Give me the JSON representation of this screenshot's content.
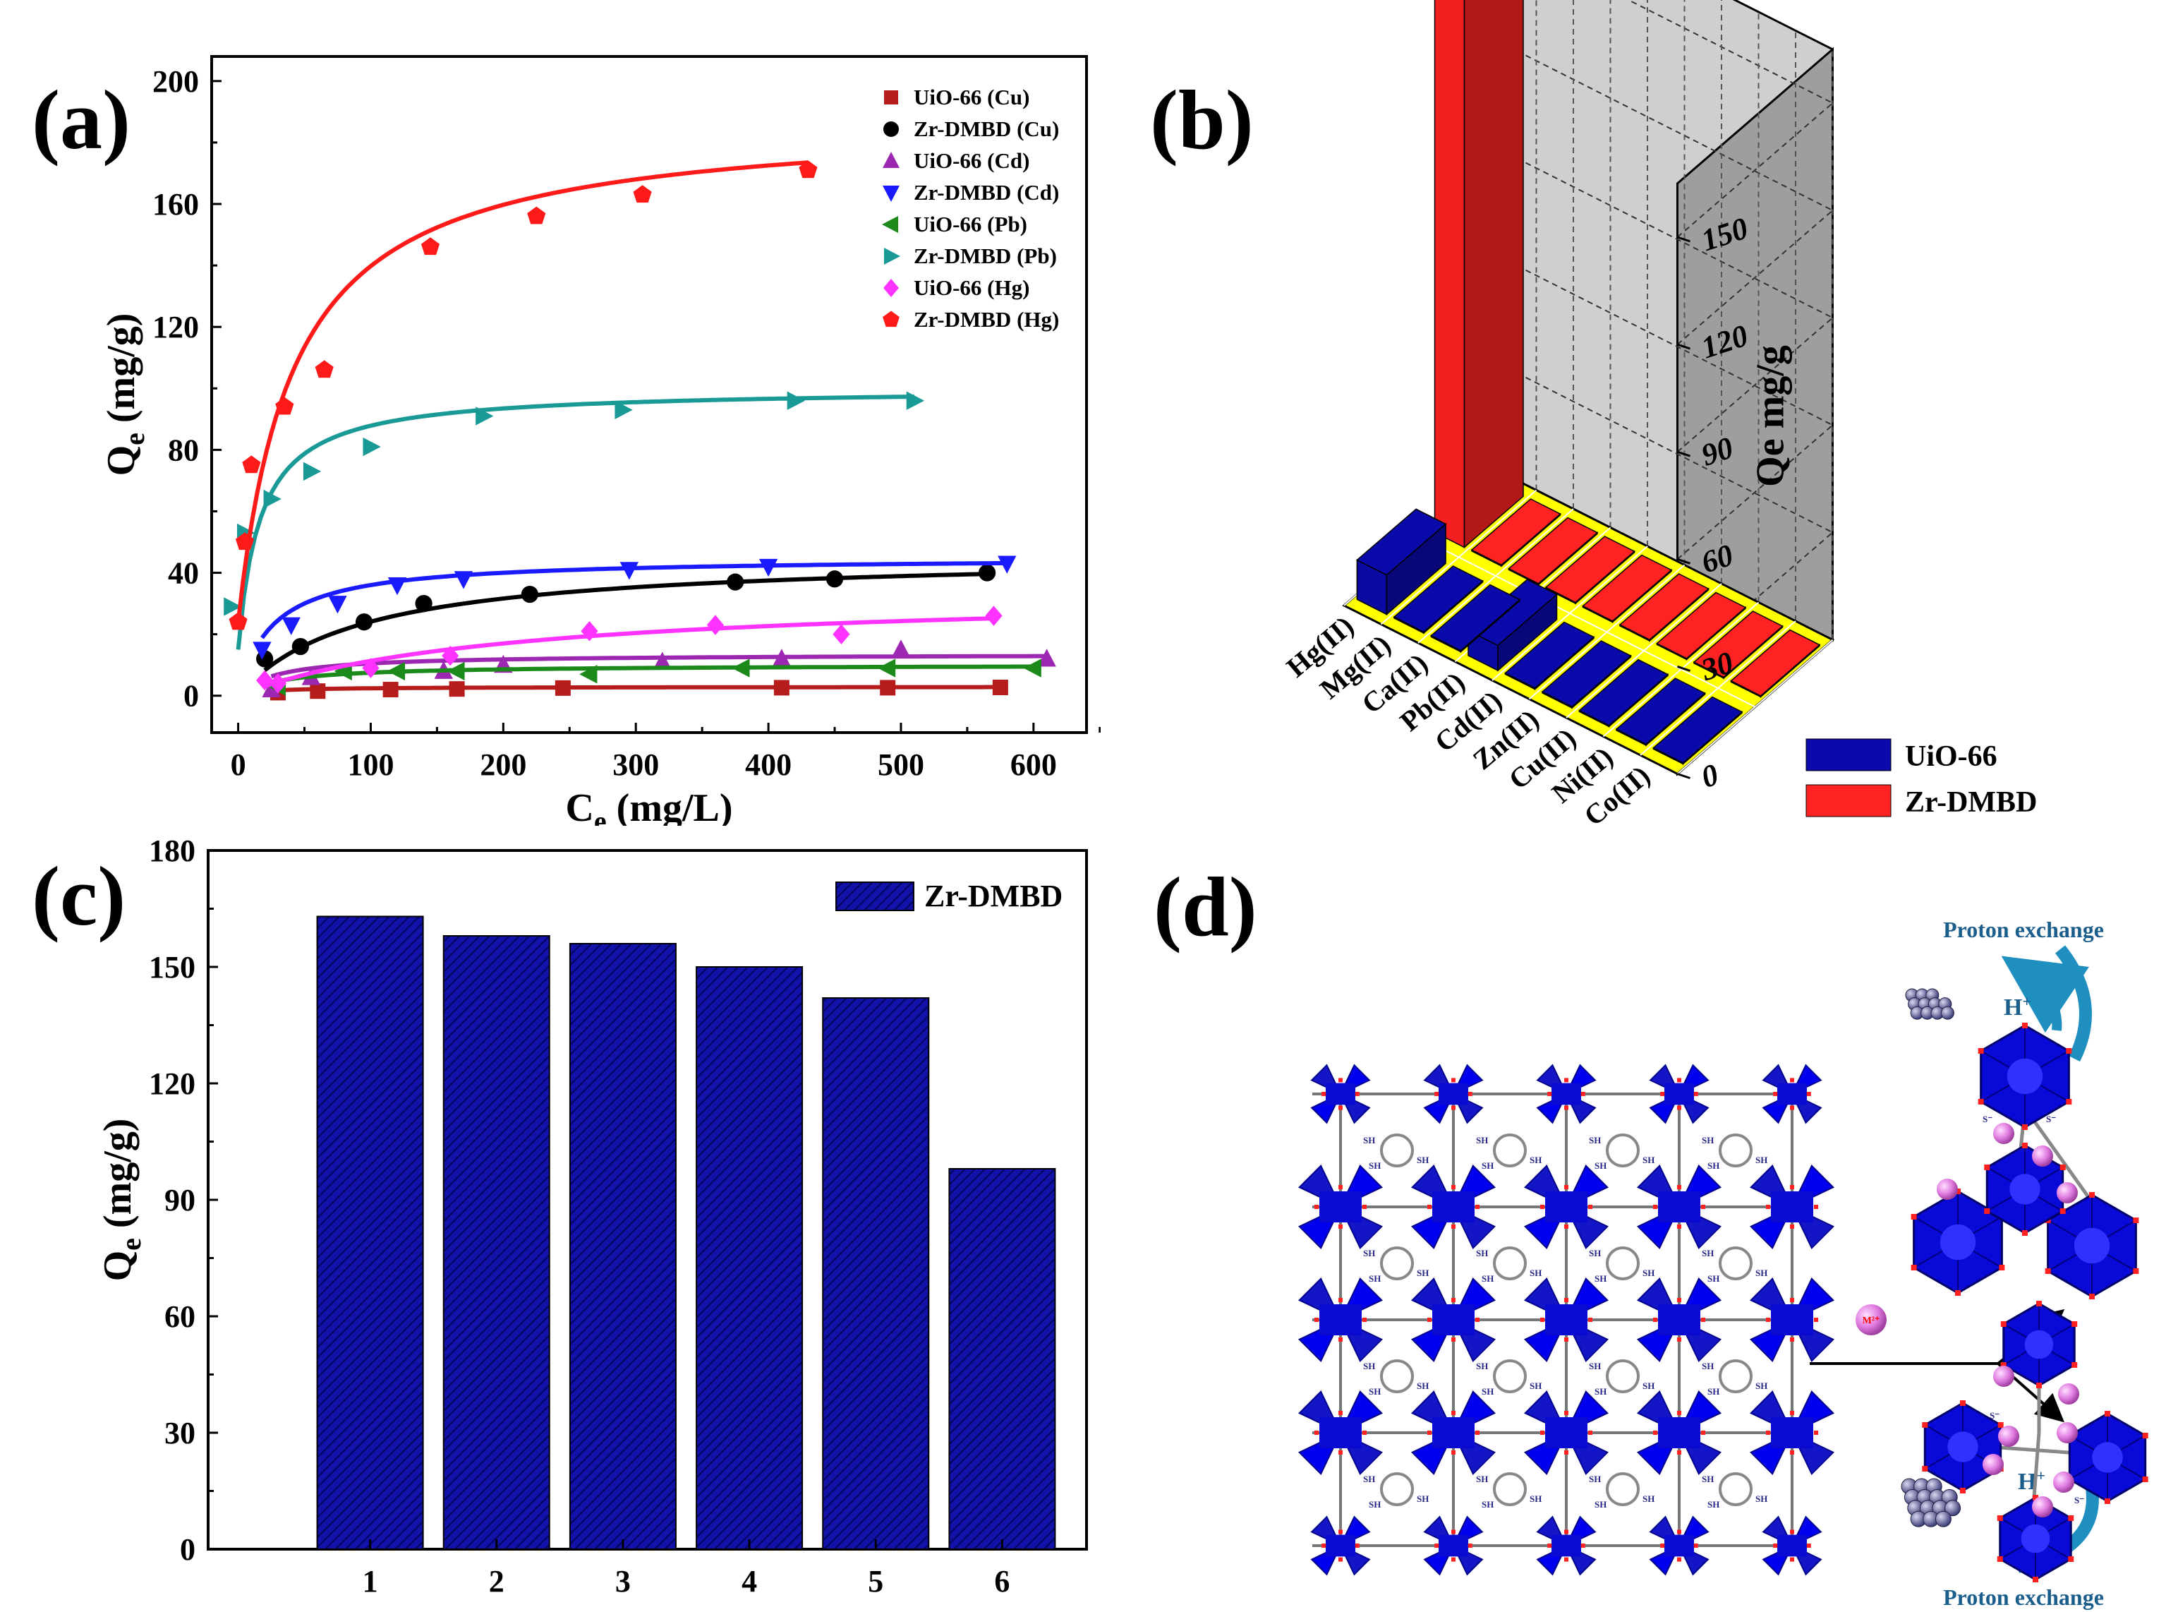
{
  "panels": [
    {
      "label": "(a)"
    },
    {
      "label": "(b)"
    },
    {
      "label": "(c)"
    },
    {
      "label": "(d)"
    }
  ],
  "colors": {
    "cu_uio": "#b71c1c",
    "cu_zr": "#000000",
    "cd_uio": "#9c27b0",
    "cd_zr": "#1a1aff",
    "pb_uio": "#1b8a1b",
    "pb_zr": "#1a9a96",
    "hg_uio": "#ff33ff",
    "hg_zr": "#ff1a1a",
    "uio66": "#0a0aaa",
    "zrdmbd": "#ff2222",
    "floor": "#ffff00",
    "wall": "#bdbdbd"
  },
  "chart_data": [
    {
      "id": "a",
      "type": "scatter",
      "ylabel_main": "Q",
      "ylabel_sub": "e",
      "ylabel_unit": " (mg/g)",
      "xlabel_main": "C",
      "xlabel_sub": "e",
      "xlabel_unit": " (mg/L)",
      "xlim": [
        -20,
        640
      ],
      "ylim": [
        -12,
        208
      ],
      "xticks": [
        0,
        100,
        200,
        300,
        400,
        500,
        600
      ],
      "yticks": [
        0,
        40,
        80,
        120,
        160,
        200
      ],
      "legend_position": "top-right",
      "series": [
        {
          "name": "UiO-66 (Cu)",
          "marker": "square",
          "color": "#b71c1c",
          "points": [
            [
              30,
              1
            ],
            [
              60,
              1.5
            ],
            [
              115,
              2
            ],
            [
              165,
              2.2
            ],
            [
              245,
              2.5
            ],
            [
              410,
              2.6
            ],
            [
              490,
              2.6
            ],
            [
              575,
              2.7
            ]
          ],
          "fit": {
            "qmax": 2.9,
            "K": 0.05
          }
        },
        {
          "name": "Zr-DMBD (Cu)",
          "marker": "circle",
          "color": "#000000",
          "points": [
            [
              20,
              12
            ],
            [
              47,
              16
            ],
            [
              95,
              24
            ],
            [
              140,
              30
            ],
            [
              220,
              33
            ],
            [
              375,
              37
            ],
            [
              450,
              38
            ],
            [
              565,
              40
            ]
          ],
          "fit": {
            "qmax": 46,
            "K": 0.011
          }
        },
        {
          "name": "UiO-66 (Cd)",
          "marker": "triangle-up",
          "color": "#9c27b0",
          "points": [
            [
              25,
              2
            ],
            [
              55,
              6
            ],
            [
              155,
              8
            ],
            [
              200,
              10
            ],
            [
              320,
              11
            ],
            [
              410,
              12
            ],
            [
              500,
              15
            ],
            [
              610,
              12
            ]
          ],
          "fit": {
            "qmax": 13.5,
            "K": 0.035
          }
        },
        {
          "name": "Zr-DMBD (Cd)",
          "marker": "triangle-down",
          "color": "#1a1aff",
          "points": [
            [
              18,
              15
            ],
            [
              40,
              23
            ],
            [
              75,
              30
            ],
            [
              120,
              36
            ],
            [
              170,
              38
            ],
            [
              295,
              41
            ],
            [
              400,
              42
            ],
            [
              580,
              43
            ]
          ],
          "fit": {
            "qmax": 45,
            "K": 0.04
          }
        },
        {
          "name": "UiO-66 (Pb)",
          "marker": "triangle-left",
          "color": "#1b8a1b",
          "points": [
            [
              30,
              3
            ],
            [
              80,
              8
            ],
            [
              120,
              8
            ],
            [
              165,
              8
            ],
            [
              265,
              7
            ],
            [
              380,
              9
            ],
            [
              490,
              9
            ],
            [
              600,
              9
            ]
          ],
          "fit": {
            "qmax": 10,
            "K": 0.03
          }
        },
        {
          "name": "Zr-DMBD (Pb)",
          "marker": "triangle-right",
          "color": "#1a9a96",
          "points": [
            [
              -5,
              29
            ],
            [
              5,
              53
            ],
            [
              25,
              64
            ],
            [
              55,
              73
            ],
            [
              100,
              81
            ],
            [
              185,
              91
            ],
            [
              290,
              93
            ],
            [
              420,
              96
            ],
            [
              510,
              96
            ]
          ],
          "fit": {
            "qmax": 100,
            "K": 0.06,
            "offset": 15
          }
        },
        {
          "name": "UiO-66 (Hg)",
          "marker": "diamond",
          "color": "#ff33ff",
          "points": [
            [
              20,
              5
            ],
            [
              30,
              4
            ],
            [
              100,
              9
            ],
            [
              160,
              13
            ],
            [
              265,
              21
            ],
            [
              360,
              23
            ],
            [
              455,
              20
            ],
            [
              570,
              26
            ]
          ],
          "fit": {
            "qmax": 34,
            "K": 0.005
          }
        },
        {
          "name": "Zr-DMBD (Hg)",
          "marker": "pentagon",
          "color": "#ff1a1a",
          "points": [
            [
              0,
              24
            ],
            [
              5,
              50
            ],
            [
              10,
              75
            ],
            [
              35,
              94
            ],
            [
              65,
              106
            ],
            [
              145,
              146
            ],
            [
              225,
              156
            ],
            [
              305,
              163
            ],
            [
              430,
              171
            ]
          ],
          "fit": {
            "qmax": 188,
            "K": 0.024,
            "offset": 24
          }
        }
      ]
    },
    {
      "id": "b",
      "type": "bar3d",
      "zlabel": "Qe mg/g",
      "zlim": [
        0,
        165
      ],
      "zticks": [
        0,
        30,
        60,
        90,
        120,
        150
      ],
      "categories": [
        "Hg(II)",
        "Mg(II)",
        "Ca(II)",
        "Pb(II)",
        "Cd(II)",
        "Zn(II)",
        "Cu(II)",
        "Ni(II)",
        "Co(II)"
      ],
      "series": [
        {
          "name": "UiO-66",
          "values": [
            11,
            0.3,
            0.3,
            7,
            0.3,
            0.3,
            0.3,
            0.3,
            0.3
          ]
        },
        {
          "name": "Zr-DMBD",
          "values": [
            171,
            0.3,
            0.3,
            0.3,
            0.3,
            0.3,
            0.3,
            0.3,
            0.3
          ]
        }
      ],
      "legend_position": "bottom-right"
    },
    {
      "id": "c",
      "type": "bar",
      "ylabel_main": "Q",
      "ylabel_sub": "e",
      "ylabel_unit": " (mg/g)",
      "categories": [
        "1",
        "2",
        "3",
        "4",
        "5",
        "6"
      ],
      "values": [
        163,
        158,
        156,
        150,
        142,
        98
      ],
      "ylim": [
        0,
        180
      ],
      "yticks": [
        0,
        30,
        60,
        90,
        120,
        150,
        180
      ],
      "legend": "Zr-DMBD",
      "legend_position": "top-right"
    }
  ],
  "diagram_d": {
    "proton_exchange_top": "Proton exchange",
    "proton_exchange_bottom": "Proton exchange",
    "h_plus": "H",
    "h_plus_sup": "+",
    "ion_label": "M²⁺",
    "thiol_label": "SH",
    "thiolate_label": "S⁻"
  }
}
